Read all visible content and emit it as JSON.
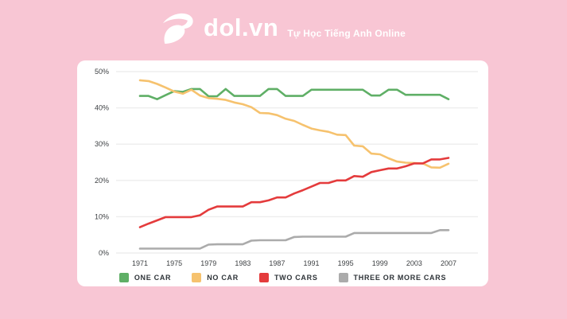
{
  "header": {
    "logo_text": "dol.vn",
    "tagline": "Tự Học Tiếng Anh Online",
    "logo_icon": "dol-d-swoosh-icon"
  },
  "colors": {
    "background": "#F8C6D4",
    "card": "#FFFFFF",
    "grid": "#EDEDED",
    "axis_text": "#3D4043",
    "legend_text": "#2E3338",
    "one_car": "#5FAF66",
    "no_car": "#F6C26E",
    "two_cars": "#E43B3C",
    "three_or_more_cars": "#ABABAB",
    "logo_text_color": "#FFFFFF"
  },
  "chart_data": {
    "type": "line",
    "title": "",
    "xlabel": "",
    "ylabel": "",
    "grid": "horizontal",
    "legend_position": "bottom",
    "ylim": [
      0,
      50
    ],
    "y_tick_values": [
      50,
      40,
      30,
      20,
      10,
      0
    ],
    "y_tick_labels": [
      "50%",
      "40%",
      "30%",
      "20%",
      "10%",
      "0%"
    ],
    "x_tick_labels": [
      "1971",
      "1975",
      "1979",
      "1983",
      "1987",
      "1991",
      "1995",
      "1999",
      "2003",
      "2007"
    ],
    "x": [
      1971,
      1972,
      1973,
      1974,
      1975,
      1976,
      1977,
      1978,
      1979,
      1980,
      1981,
      1982,
      1983,
      1984,
      1985,
      1986,
      1987,
      1988,
      1989,
      1990,
      1991,
      1992,
      1993,
      1994,
      1995,
      1996,
      1997,
      1998,
      1999,
      2000,
      2001,
      2002,
      2003,
      2004,
      2005,
      2006,
      2007
    ],
    "series": [
      {
        "id": "one-car",
        "name": "ONE CAR",
        "color": "#5FAF66",
        "values": [
          43.3,
          43.3,
          42.4,
          43.5,
          44.6,
          44.4,
          45.2,
          45.2,
          43.2,
          43.2,
          45.2,
          43.3,
          43.3,
          43.3,
          43.3,
          45.2,
          45.2,
          43.3,
          43.3,
          43.3,
          45,
          45,
          45,
          45,
          45,
          45,
          45,
          43.4,
          43.4,
          45,
          45,
          43.6,
          43.6,
          43.6,
          43.6,
          43.6,
          42.4
        ]
      },
      {
        "id": "no-car",
        "name": "NO CAR",
        "color": "#F6C26E",
        "values": [
          47.6,
          47.4,
          46.6,
          45.6,
          44.5,
          43.9,
          45,
          43.4,
          42.7,
          42.5,
          42.2,
          41.5,
          41,
          40.2,
          38.6,
          38.5,
          38,
          37,
          36.4,
          35.3,
          34.3,
          33.8,
          33.4,
          32.6,
          32.5,
          29.6,
          29.4,
          27.4,
          27.2,
          26.1,
          25.2,
          24.9,
          24.8,
          24.7,
          23.6,
          23.5,
          24.6
        ]
      },
      {
        "id": "two-cars",
        "name": "TWO CARS",
        "color": "#E43B3C",
        "values": [
          7.1,
          8.1,
          9,
          9.9,
          9.9,
          9.9,
          9.9,
          10.4,
          11.9,
          12.8,
          12.8,
          12.8,
          12.8,
          14,
          14,
          14.5,
          15.3,
          15.3,
          16.4,
          17.3,
          18.3,
          19.3,
          19.3,
          20,
          20,
          21.2,
          21,
          22.3,
          22.8,
          23.3,
          23.3,
          23.9,
          24.7,
          24.7,
          25.8,
          25.8,
          26.2
        ]
      },
      {
        "id": "three-or-more-cars",
        "name": "THREE OR MORE CARS",
        "color": "#ABABAB",
        "values": [
          1.2,
          1.2,
          1.2,
          1.2,
          1.2,
          1.2,
          1.2,
          1.2,
          2.3,
          2.4,
          2.4,
          2.4,
          2.4,
          3.4,
          3.5,
          3.5,
          3.5,
          3.5,
          4.4,
          4.5,
          4.5,
          4.5,
          4.5,
          4.5,
          4.5,
          5.5,
          5.5,
          5.5,
          5.5,
          5.5,
          5.5,
          5.5,
          5.5,
          5.5,
          5.5,
          6.3,
          6.3
        ]
      }
    ]
  }
}
